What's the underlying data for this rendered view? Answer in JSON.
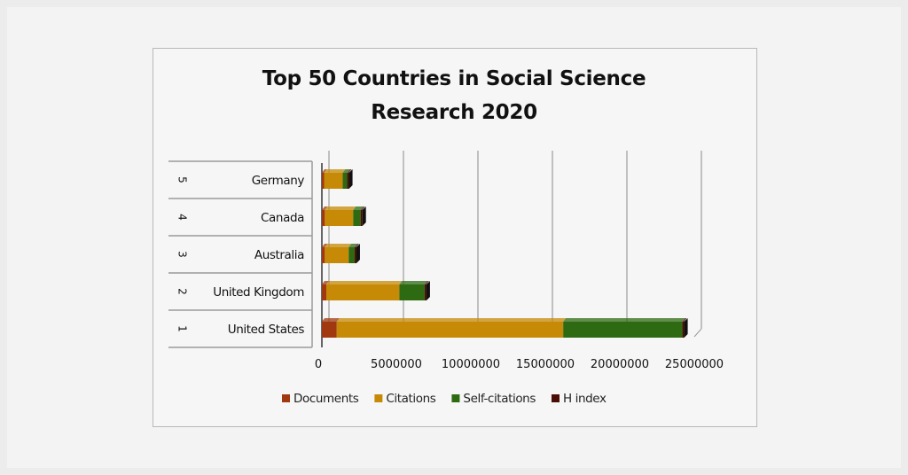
{
  "chart_data": {
    "type": "bar",
    "orientation": "horizontal",
    "stacked": true,
    "style": "3d",
    "title_lines": [
      "Top 50 Countries  in Social Science",
      "Research 2020"
    ],
    "categories": [
      "United States",
      "United Kingdom",
      "Australia",
      "Canada",
      "Germany"
    ],
    "ranks": [
      "1",
      "2",
      "3",
      "4",
      "5"
    ],
    "series": [
      {
        "name": "Documents",
        "color": "#a0390f",
        "values": [
          1000000,
          300000,
          200000,
          200000,
          150000
        ]
      },
      {
        "name": "Citations",
        "color": "#c68a07",
        "values": [
          15200000,
          4900000,
          1600000,
          1900000,
          1250000
        ]
      },
      {
        "name": "Self-citations",
        "color": "#2d6a12",
        "values": [
          8000000,
          1700000,
          400000,
          500000,
          300000
        ]
      },
      {
        "name": "H index",
        "color": "#4a0d04",
        "values": [
          700,
          450,
          350,
          400,
          350
        ]
      }
    ],
    "xlim": [
      0,
      25000000
    ],
    "xticks": [
      "0",
      "5000000",
      "10000000",
      "15000000",
      "20000000",
      "25000000"
    ],
    "grid": true,
    "legend": "bottom"
  }
}
